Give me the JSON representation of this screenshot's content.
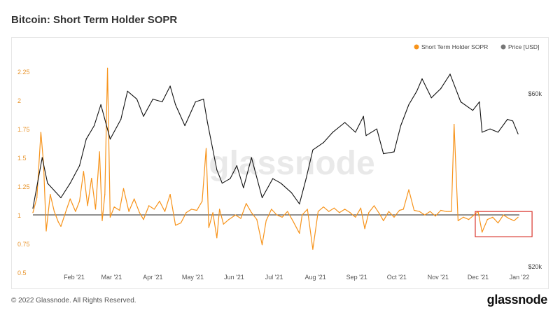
{
  "chart_data": {
    "type": "line",
    "title": "Bitcoin: Short Term Holder SOPR",
    "watermark": "glassnode",
    "legend_position": "top-right",
    "grid": false,
    "x_tick_labels": [
      "Feb '21",
      "Mar '21",
      "Apr '21",
      "May '21",
      "Jun '21",
      "Jul '21",
      "Aug '21",
      "Sep '21",
      "Oct '21",
      "Nov '21",
      "Dec '21",
      "Jan '22"
    ],
    "y_left": {
      "ticks": [
        "0.5",
        "0.75",
        "1",
        "1.25",
        "1.5",
        "1.75",
        "2",
        "2.25"
      ],
      "min": 0.5,
      "max": 2.3
    },
    "y_right": {
      "ticks": [
        "$20k",
        "$60k"
      ],
      "scale": "log"
    },
    "series": [
      {
        "name": "Short Term Holder SOPR",
        "color": "#f7931a",
        "axis": "left",
        "points": [
          [
            "Jan 1",
            1.02
          ],
          [
            "Jan 4",
            1.15
          ],
          [
            "Jan 7",
            1.72
          ],
          [
            "Jan 9",
            1.45
          ],
          [
            "Jan 11",
            0.86
          ],
          [
            "Jan 14",
            1.18
          ],
          [
            "Jan 17",
            1.03
          ],
          [
            "Jan 20",
            0.94
          ],
          [
            "Jan 22",
            0.9
          ],
          [
            "Jan 26",
            1.04
          ],
          [
            "Jan 29",
            1.14
          ],
          [
            "Feb 2",
            1.03
          ],
          [
            "Feb 5",
            1.12
          ],
          [
            "Feb 8",
            1.38
          ],
          [
            "Feb 11",
            1.08
          ],
          [
            "Feb 14",
            1.32
          ],
          [
            "Feb 17",
            1.05
          ],
          [
            "Feb 20",
            1.55
          ],
          [
            "Feb 22",
            0.95
          ],
          [
            "Feb 24",
            1.18
          ],
          [
            "Feb 26",
            2.28
          ],
          [
            "Feb 28",
            0.98
          ],
          [
            "Mar 3",
            1.07
          ],
          [
            "Mar 7",
            1.04
          ],
          [
            "Mar 10",
            1.23
          ],
          [
            "Mar 14",
            1.03
          ],
          [
            "Mar 18",
            1.14
          ],
          [
            "Mar 22",
            1.02
          ],
          [
            "Mar 25",
            0.96
          ],
          [
            "Mar 29",
            1.08
          ],
          [
            "Apr 2",
            1.05
          ],
          [
            "Apr 6",
            1.12
          ],
          [
            "Apr 10",
            1.03
          ],
          [
            "Apr 14",
            1.18
          ],
          [
            "Apr 18",
            0.91
          ],
          [
            "Apr 22",
            0.93
          ],
          [
            "Apr 26",
            1.02
          ],
          [
            "Apr 30",
            1.05
          ],
          [
            "May 4",
            1.04
          ],
          [
            "May 8",
            1.12
          ],
          [
            "May 11",
            1.58
          ],
          [
            "May 13",
            0.89
          ],
          [
            "May 16",
            1.02
          ],
          [
            "May 19",
            0.8
          ],
          [
            "May 21",
            1.05
          ],
          [
            "May 24",
            0.92
          ],
          [
            "May 28",
            0.96
          ],
          [
            "Jun 2",
            1.0
          ],
          [
            "Jun 6",
            0.97
          ],
          [
            "Jun 10",
            1.1
          ],
          [
            "Jun 14",
            1.02
          ],
          [
            "Jun 18",
            0.96
          ],
          [
            "Jun 22",
            0.74
          ],
          [
            "Jun 25",
            0.95
          ],
          [
            "Jun 29",
            1.05
          ],
          [
            "Jul 3",
            1.0
          ],
          [
            "Jul 7",
            0.98
          ],
          [
            "Jul 11",
            1.03
          ],
          [
            "Jul 15",
            0.95
          ],
          [
            "Jul 20",
            0.84
          ],
          [
            "Jul 22",
            1.0
          ],
          [
            "Jul 26",
            1.05
          ],
          [
            "Jul 30",
            0.7
          ],
          [
            "Aug 3",
            1.03
          ],
          [
            "Aug 7",
            1.07
          ],
          [
            "Aug 11",
            1.03
          ],
          [
            "Aug 15",
            1.06
          ],
          [
            "Aug 19",
            1.02
          ],
          [
            "Aug 23",
            1.05
          ],
          [
            "Aug 27",
            1.02
          ],
          [
            "Aug 31",
            0.98
          ],
          [
            "Sep 4",
            1.06
          ],
          [
            "Sep 7",
            0.88
          ],
          [
            "Sep 10",
            1.02
          ],
          [
            "Sep 14",
            1.08
          ],
          [
            "Sep 18",
            1.01
          ],
          [
            "Sep 21",
            0.95
          ],
          [
            "Sep 25",
            1.03
          ],
          [
            "Sep 29",
            0.98
          ],
          [
            "Oct 3",
            1.04
          ],
          [
            "Oct 6",
            1.05
          ],
          [
            "Oct 10",
            1.22
          ],
          [
            "Oct 14",
            1.04
          ],
          [
            "Oct 18",
            1.03
          ],
          [
            "Oct 22",
            1.0
          ],
          [
            "Oct 26",
            1.03
          ],
          [
            "Oct 30",
            0.99
          ],
          [
            "Nov 3",
            1.04
          ],
          [
            "Nov 7",
            1.03
          ],
          [
            "Nov 9",
            1.03
          ],
          [
            "Nov 11",
            1.03
          ],
          [
            "Nov 13",
            1.79
          ],
          [
            "Nov 16",
            0.95
          ],
          [
            "Nov 20",
            0.98
          ],
          [
            "Nov 24",
            0.96
          ],
          [
            "Nov 28",
            1.0
          ],
          [
            "Dec 1",
            1.03
          ],
          [
            "Dec 4",
            0.85
          ],
          [
            "Dec 8",
            0.96
          ],
          [
            "Dec 12",
            0.98
          ],
          [
            "Dec 16",
            0.93
          ],
          [
            "Dec 20",
            1.0
          ],
          [
            "Dec 24",
            0.97
          ],
          [
            "Dec 28",
            0.95
          ],
          [
            "Dec 31",
            0.98
          ]
        ]
      },
      {
        "name": "Price [USD]",
        "color": "#111111",
        "axis": "right",
        "points": [
          [
            "Jan 1",
            29000
          ],
          [
            "Jan 8",
            40000
          ],
          [
            "Jan 12",
            34000
          ],
          [
            "Jan 22",
            31000
          ],
          [
            "Jan 29",
            34000
          ],
          [
            "Feb 5",
            38000
          ],
          [
            "Feb 10",
            45000
          ],
          [
            "Feb 16",
            49000
          ],
          [
            "Feb 21",
            56000
          ],
          [
            "Feb 28",
            45000
          ],
          [
            "Mar 8",
            51000
          ],
          [
            "Mar 13",
            61000
          ],
          [
            "Mar 20",
            58000
          ],
          [
            "Mar 25",
            52000
          ],
          [
            "Apr 1",
            58000
          ],
          [
            "Apr 8",
            57000
          ],
          [
            "Apr 14",
            63000
          ],
          [
            "Apr 18",
            56000
          ],
          [
            "Apr 25",
            49000
          ],
          [
            "May 3",
            57000
          ],
          [
            "May 9",
            58000
          ],
          [
            "May 12",
            50000
          ],
          [
            "May 19",
            37000
          ],
          [
            "May 23",
            34000
          ],
          [
            "May 29",
            35000
          ],
          [
            "Jun 3",
            38000
          ],
          [
            "Jun 8",
            33000
          ],
          [
            "Jun 14",
            40000
          ],
          [
            "Jun 22",
            31000
          ],
          [
            "Jun 30",
            35000
          ],
          [
            "Jul 6",
            34000
          ],
          [
            "Jul 14",
            32000
          ],
          [
            "Jul 20",
            29800
          ],
          [
            "Jul 25",
            35000
          ],
          [
            "Jul 30",
            42000
          ],
          [
            "Aug 7",
            44000
          ],
          [
            "Aug 14",
            47000
          ],
          [
            "Aug 23",
            50000
          ],
          [
            "Aug 31",
            47000
          ],
          [
            "Sep 6",
            52000
          ],
          [
            "Sep 8",
            46000
          ],
          [
            "Sep 16",
            48000
          ],
          [
            "Sep 21",
            41000
          ],
          [
            "Sep 29",
            41500
          ],
          [
            "Oct 4",
            49000
          ],
          [
            "Oct 10",
            56000
          ],
          [
            "Oct 16",
            61000
          ],
          [
            "Oct 20",
            66000
          ],
          [
            "Oct 27",
            58500
          ],
          [
            "Nov 3",
            62000
          ],
          [
            "Nov 10",
            68000
          ],
          [
            "Nov 18",
            57000
          ],
          [
            "Nov 27",
            54000
          ],
          [
            "Dec 2",
            57000
          ],
          [
            "Dec 4",
            47000
          ],
          [
            "Dec 10",
            48000
          ],
          [
            "Dec 16",
            47000
          ],
          [
            "Dec 23",
            51000
          ],
          [
            "Dec 27",
            50500
          ],
          [
            "Dec 31",
            46500
          ]
        ]
      }
    ]
  },
  "legend": [
    {
      "label": "Short Term Holder SOPR",
      "color": "#f7931a"
    },
    {
      "label": "Price [USD]",
      "color": "#777777"
    }
  ],
  "footer": {
    "copyright": "© 2022 Glassnode. All Rights Reserved.",
    "brand": "glassnode"
  }
}
